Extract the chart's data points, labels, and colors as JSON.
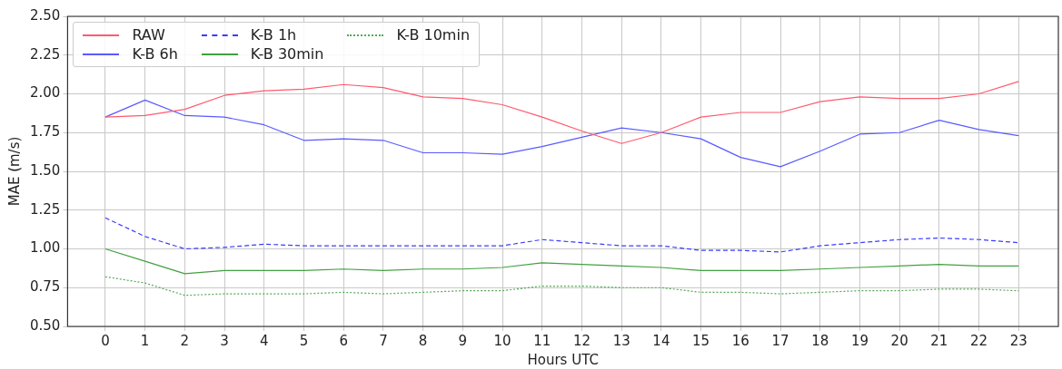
{
  "chart_data": {
    "type": "line",
    "xlabel": "Hours UTC",
    "ylabel": "MAE (m/s)",
    "x": [
      0,
      1,
      2,
      3,
      4,
      5,
      6,
      7,
      8,
      9,
      10,
      11,
      12,
      13,
      14,
      15,
      16,
      17,
      18,
      19,
      20,
      21,
      22,
      23
    ],
    "xlim": [
      -0.95,
      24
    ],
    "xticks": [
      0,
      1,
      2,
      3,
      4,
      5,
      6,
      7,
      8,
      9,
      10,
      11,
      12,
      13,
      14,
      15,
      16,
      17,
      18,
      19,
      20,
      21,
      22,
      23
    ],
    "ylim": [
      0.5,
      2.5
    ],
    "yticks": [
      {
        "value": 0.5,
        "label": "0.50"
      },
      {
        "value": 0.75,
        "label": "0.75"
      },
      {
        "value": 1,
        "label": "1.00"
      },
      {
        "value": 1.25,
        "label": "1.25"
      },
      {
        "value": 1.5,
        "label": "1.50"
      },
      {
        "value": 1.75,
        "label": "1.75"
      },
      {
        "value": 2,
        "label": "2.00"
      },
      {
        "value": 2.25,
        "label": "2.25"
      },
      {
        "value": 2.5,
        "label": "2.50"
      }
    ],
    "grid": true,
    "legend": "top left",
    "marker": "none",
    "series": [
      {
        "name": "RAW",
        "color": "#ff5a6e",
        "line_style": "solid",
        "values": [
          1.85,
          1.86,
          1.9,
          1.99,
          2.02,
          2.03,
          2.06,
          2.04,
          1.98,
          1.97,
          1.93,
          1.85,
          1.76,
          1.68,
          1.75,
          1.85,
          1.88,
          1.88,
          1.95,
          1.98,
          1.97,
          1.97,
          2.0,
          2.08
        ]
      },
      {
        "name": "K-B 6h",
        "color": "#5a5aff",
        "line_style": "solid",
        "values": [
          1.85,
          1.96,
          1.86,
          1.85,
          1.8,
          1.7,
          1.71,
          1.7,
          1.62,
          1.62,
          1.61,
          1.66,
          1.72,
          1.78,
          1.75,
          1.71,
          1.59,
          1.53,
          1.63,
          1.74,
          1.75,
          1.83,
          1.77,
          1.73
        ]
      },
      {
        "name": "K-B 1h",
        "color": "#3c3cff",
        "line_style": "dashed",
        "values": [
          1.2,
          1.08,
          1.0,
          1.01,
          1.03,
          1.02,
          1.02,
          1.02,
          1.02,
          1.02,
          1.02,
          1.06,
          1.04,
          1.02,
          1.02,
          0.99,
          0.99,
          0.98,
          1.02,
          1.04,
          1.06,
          1.07,
          1.06,
          1.04
        ]
      },
      {
        "name": "K-B 30min",
        "color": "#40a040",
        "line_style": "solid",
        "values": [
          1.0,
          0.92,
          0.84,
          0.86,
          0.86,
          0.86,
          0.87,
          0.86,
          0.87,
          0.87,
          0.88,
          0.91,
          0.9,
          0.89,
          0.88,
          0.86,
          0.86,
          0.86,
          0.87,
          0.88,
          0.89,
          0.9,
          0.89,
          0.89
        ]
      },
      {
        "name": "K-B 10min",
        "color": "#55a855",
        "line_style": "dotted",
        "values": [
          0.82,
          0.78,
          0.7,
          0.71,
          0.71,
          0.71,
          0.72,
          0.71,
          0.72,
          0.73,
          0.73,
          0.76,
          0.76,
          0.75,
          0.75,
          0.72,
          0.72,
          0.71,
          0.72,
          0.73,
          0.73,
          0.74,
          0.74,
          0.73
        ]
      }
    ]
  }
}
